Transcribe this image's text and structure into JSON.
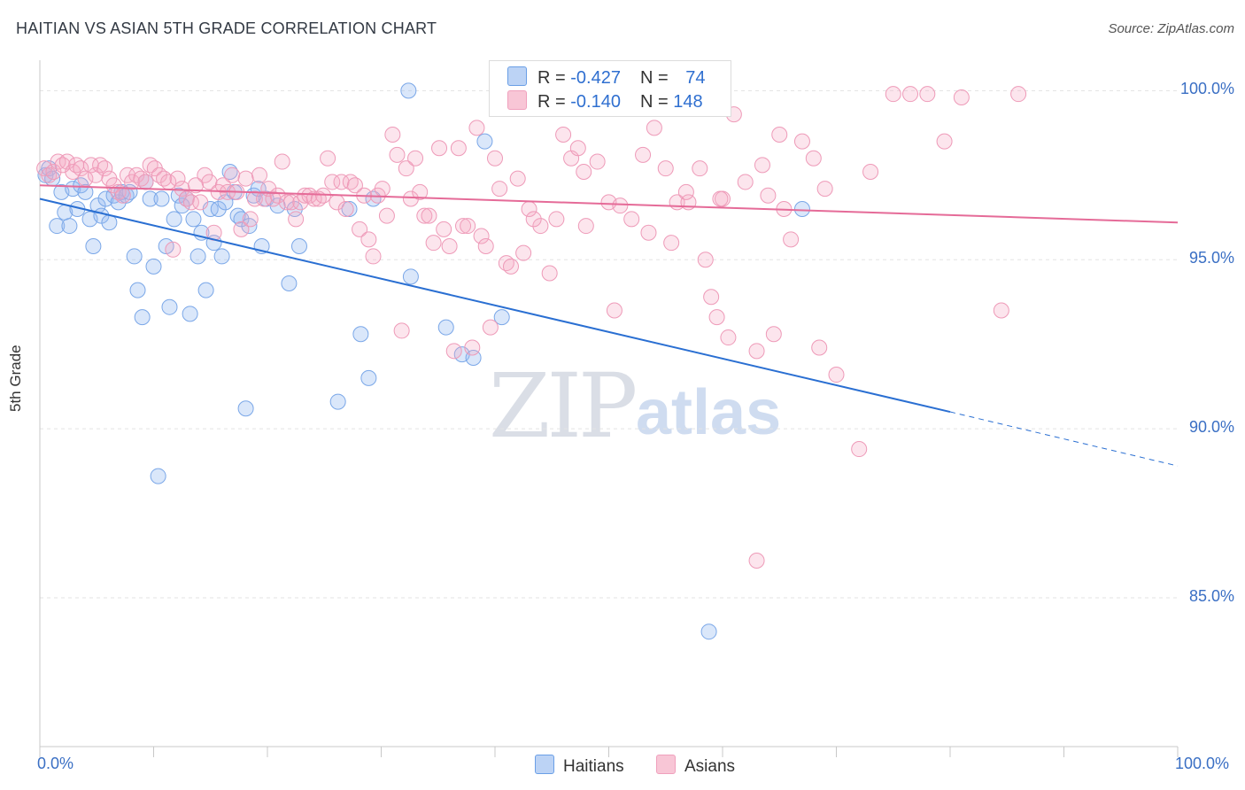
{
  "title": "HAITIAN VS ASIAN 5TH GRADE CORRELATION CHART",
  "source": "Source: ZipAtlas.com",
  "colors": {
    "haitians": "#6a9fe6",
    "asians": "#f0a0bd",
    "haitians_line": "#2a6fd2",
    "asians_line": "#e56b98"
  },
  "legend": {
    "haitians": {
      "r_label": "R = ",
      "r_value": "-0.427",
      "n_label": "N = ",
      "n_value": "74"
    },
    "asians": {
      "r_label": "R = ",
      "r_value": "-0.140",
      "n_label": "N = ",
      "n_value": "148"
    }
  },
  "watermark": {
    "zip": "ZIP",
    "atlas": "atlas"
  },
  "chart_data": {
    "type": "scatter",
    "title": "HAITIAN VS ASIAN 5TH GRADE CORRELATION CHART",
    "xlabel": "",
    "ylabel": "5th Grade",
    "xlim": [
      0,
      100
    ],
    "ylim": [
      80.6,
      100.9
    ],
    "x_tick_labels": [
      "0.0%",
      "100.0%"
    ],
    "y_ticks": [
      85,
      90,
      95,
      100
    ],
    "y_tick_labels": [
      "85.0%",
      "90.0%",
      "95.0%",
      "100.0%"
    ],
    "grid": true,
    "legend_position": "bottom-center",
    "series": [
      {
        "name": "Haitians",
        "r": -0.427,
        "n": 74,
        "trend": {
          "x0": 0,
          "y0": 96.8,
          "x1": 80,
          "y1": 90.5,
          "dashed_to_x": 100,
          "dashed_to_y": 88.9
        },
        "points": [
          [
            0.5,
            97.5
          ],
          [
            0.8,
            97.7
          ],
          [
            1.1,
            97.4
          ],
          [
            1.5,
            96.0
          ],
          [
            1.9,
            97.0
          ],
          [
            2.2,
            96.4
          ],
          [
            2.6,
            96.0
          ],
          [
            2.9,
            97.1
          ],
          [
            3.3,
            96.5
          ],
          [
            3.6,
            97.2
          ],
          [
            4.0,
            97.0
          ],
          [
            4.4,
            96.2
          ],
          [
            4.7,
            95.4
          ],
          [
            5.1,
            96.6
          ],
          [
            5.4,
            96.3
          ],
          [
            5.8,
            96.8
          ],
          [
            6.1,
            96.1
          ],
          [
            6.5,
            96.9
          ],
          [
            6.9,
            96.7
          ],
          [
            7.2,
            97.0
          ],
          [
            7.6,
            96.9
          ],
          [
            7.9,
            97.0
          ],
          [
            8.3,
            95.1
          ],
          [
            8.6,
            94.1
          ],
          [
            9.0,
            93.3
          ],
          [
            9.3,
            97.3
          ],
          [
            9.7,
            96.8
          ],
          [
            10.0,
            94.8
          ],
          [
            10.4,
            88.6
          ],
          [
            10.7,
            96.8
          ],
          [
            11.1,
            95.4
          ],
          [
            11.4,
            93.6
          ],
          [
            11.8,
            96.2
          ],
          [
            12.2,
            96.9
          ],
          [
            12.5,
            96.6
          ],
          [
            12.9,
            96.8
          ],
          [
            13.2,
            93.4
          ],
          [
            13.5,
            96.2
          ],
          [
            13.9,
            95.1
          ],
          [
            14.2,
            95.8
          ],
          [
            14.6,
            94.1
          ],
          [
            15.0,
            96.5
          ],
          [
            15.3,
            95.5
          ],
          [
            15.7,
            96.5
          ],
          [
            16.0,
            95.1
          ],
          [
            16.3,
            96.7
          ],
          [
            16.7,
            97.6
          ],
          [
            17.1,
            97.0
          ],
          [
            17.4,
            96.3
          ],
          [
            17.7,
            96.2
          ],
          [
            18.1,
            90.6
          ],
          [
            18.4,
            96.0
          ],
          [
            18.8,
            96.9
          ],
          [
            19.2,
            97.1
          ],
          [
            19.5,
            95.4
          ],
          [
            19.9,
            96.8
          ],
          [
            20.9,
            96.6
          ],
          [
            21.9,
            94.3
          ],
          [
            22.4,
            96.5
          ],
          [
            22.8,
            95.4
          ],
          [
            26.2,
            90.8
          ],
          [
            27.2,
            96.5
          ],
          [
            28.2,
            92.8
          ],
          [
            28.9,
            91.5
          ],
          [
            29.3,
            96.8
          ],
          [
            32.4,
            100.0
          ],
          [
            32.6,
            94.5
          ],
          [
            35.7,
            93.0
          ],
          [
            37.1,
            92.2
          ],
          [
            38.1,
            92.1
          ],
          [
            39.1,
            98.5
          ],
          [
            40.6,
            93.3
          ],
          [
            58.8,
            84.0
          ],
          [
            67.0,
            96.5
          ]
        ]
      },
      {
        "name": "Asians",
        "r": -0.14,
        "n": 148,
        "trend": {
          "x0": 0,
          "y0": 97.2,
          "x1": 100,
          "y1": 96.1
        },
        "points": [
          [
            0.4,
            97.7
          ],
          [
            0.8,
            97.5
          ],
          [
            1.2,
            97.6
          ],
          [
            1.6,
            97.9
          ],
          [
            2.0,
            97.8
          ],
          [
            2.4,
            97.9
          ],
          [
            2.9,
            97.6
          ],
          [
            3.2,
            97.8
          ],
          [
            3.6,
            97.7
          ],
          [
            4.0,
            97.4
          ],
          [
            4.5,
            97.8
          ],
          [
            4.9,
            97.5
          ],
          [
            5.3,
            97.8
          ],
          [
            5.7,
            97.7
          ],
          [
            6.1,
            97.4
          ],
          [
            6.5,
            97.2
          ],
          [
            6.9,
            97.0
          ],
          [
            7.3,
            96.9
          ],
          [
            7.7,
            97.5
          ],
          [
            8.1,
            97.3
          ],
          [
            8.5,
            97.5
          ],
          [
            8.9,
            97.4
          ],
          [
            9.3,
            97.3
          ],
          [
            9.7,
            97.8
          ],
          [
            10.1,
            97.7
          ],
          [
            10.5,
            97.5
          ],
          [
            10.9,
            97.4
          ],
          [
            11.3,
            97.3
          ],
          [
            11.7,
            95.3
          ],
          [
            12.1,
            97.4
          ],
          [
            12.5,
            97.1
          ],
          [
            12.9,
            96.8
          ],
          [
            13.3,
            96.7
          ],
          [
            13.7,
            97.2
          ],
          [
            14.1,
            96.7
          ],
          [
            14.5,
            97.5
          ],
          [
            14.9,
            97.3
          ],
          [
            15.3,
            95.8
          ],
          [
            15.7,
            97.0
          ],
          [
            16.1,
            97.2
          ],
          [
            16.5,
            97.0
          ],
          [
            16.9,
            97.5
          ],
          [
            17.3,
            97.0
          ],
          [
            17.7,
            95.9
          ],
          [
            18.1,
            97.4
          ],
          [
            18.5,
            96.2
          ],
          [
            18.9,
            96.8
          ],
          [
            19.3,
            97.5
          ],
          [
            19.7,
            96.8
          ],
          [
            20.1,
            97.1
          ],
          [
            20.5,
            96.8
          ],
          [
            20.9,
            96.9
          ],
          [
            21.3,
            97.9
          ],
          [
            21.7,
            96.7
          ],
          [
            22.1,
            96.7
          ],
          [
            22.5,
            96.2
          ],
          [
            22.9,
            96.7
          ],
          [
            23.3,
            96.9
          ],
          [
            23.7,
            96.9
          ],
          [
            24.1,
            96.8
          ],
          [
            24.5,
            96.8
          ],
          [
            24.9,
            96.9
          ],
          [
            25.3,
            98.0
          ],
          [
            25.7,
            97.3
          ],
          [
            26.1,
            96.7
          ],
          [
            26.5,
            97.3
          ],
          [
            26.9,
            96.5
          ],
          [
            27.3,
            97.3
          ],
          [
            27.7,
            97.2
          ],
          [
            28.1,
            95.9
          ],
          [
            28.5,
            96.9
          ],
          [
            28.9,
            95.6
          ],
          [
            29.3,
            95.1
          ],
          [
            29.7,
            96.9
          ],
          [
            30.1,
            97.1
          ],
          [
            30.5,
            96.3
          ],
          [
            31.0,
            98.7
          ],
          [
            31.4,
            98.1
          ],
          [
            31.8,
            92.9
          ],
          [
            32.2,
            97.7
          ],
          [
            32.6,
            96.8
          ],
          [
            33.0,
            98.0
          ],
          [
            33.4,
            97.0
          ],
          [
            33.8,
            96.3
          ],
          [
            34.2,
            96.3
          ],
          [
            34.6,
            95.5
          ],
          [
            35.1,
            98.3
          ],
          [
            35.5,
            95.9
          ],
          [
            36.0,
            95.4
          ],
          [
            36.4,
            92.3
          ],
          [
            36.8,
            98.3
          ],
          [
            37.2,
            96.0
          ],
          [
            37.6,
            96.0
          ],
          [
            38.0,
            92.4
          ],
          [
            38.4,
            98.9
          ],
          [
            38.8,
            95.7
          ],
          [
            39.2,
            95.4
          ],
          [
            39.6,
            93.0
          ],
          [
            40.0,
            98.0
          ],
          [
            40.4,
            97.1
          ],
          [
            41.0,
            94.9
          ],
          [
            41.4,
            94.8
          ],
          [
            42.0,
            97.4
          ],
          [
            42.5,
            95.2
          ],
          [
            43.0,
            96.5
          ],
          [
            44.0,
            96.0
          ],
          [
            44.8,
            94.6
          ],
          [
            45.4,
            96.2
          ],
          [
            46.0,
            98.7
          ],
          [
            46.7,
            98.0
          ],
          [
            47.3,
            98.3
          ],
          [
            48.0,
            96.0
          ],
          [
            49.0,
            97.9
          ],
          [
            50.0,
            96.7
          ],
          [
            50.5,
            93.5
          ],
          [
            51.0,
            96.6
          ],
          [
            52.0,
            96.2
          ],
          [
            53.0,
            98.1
          ],
          [
            54.0,
            98.9
          ],
          [
            55.0,
            97.7
          ],
          [
            55.5,
            95.5
          ],
          [
            56.0,
            96.7
          ],
          [
            57.0,
            96.7
          ],
          [
            58.0,
            97.7
          ],
          [
            58.5,
            95.0
          ],
          [
            59.0,
            93.9
          ],
          [
            59.5,
            93.3
          ],
          [
            60.0,
            96.8
          ],
          [
            60.5,
            92.7
          ],
          [
            61.0,
            99.3
          ],
          [
            62.0,
            97.3
          ],
          [
            63.0,
            92.3
          ],
          [
            63.5,
            97.8
          ],
          [
            64.0,
            96.9
          ],
          [
            64.5,
            92.8
          ],
          [
            65.0,
            98.7
          ],
          [
            66.0,
            95.6
          ],
          [
            67.0,
            98.5
          ],
          [
            68.0,
            98.0
          ],
          [
            68.5,
            92.4
          ],
          [
            69.0,
            97.1
          ],
          [
            70.0,
            91.6
          ],
          [
            72.0,
            89.4
          ],
          [
            73.0,
            97.6
          ],
          [
            75.0,
            99.9
          ],
          [
            76.5,
            99.9
          ],
          [
            78.0,
            99.9
          ],
          [
            79.5,
            98.5
          ],
          [
            81.0,
            99.8
          ],
          [
            86.0,
            99.9
          ],
          [
            84.5,
            93.5
          ],
          [
            63.0,
            86.1
          ],
          [
            65.4,
            96.5
          ],
          [
            43.4,
            96.2
          ],
          [
            47.8,
            97.6
          ],
          [
            56.8,
            97.0
          ],
          [
            53.5,
            95.8
          ],
          [
            59.8,
            96.8
          ]
        ]
      }
    ]
  }
}
